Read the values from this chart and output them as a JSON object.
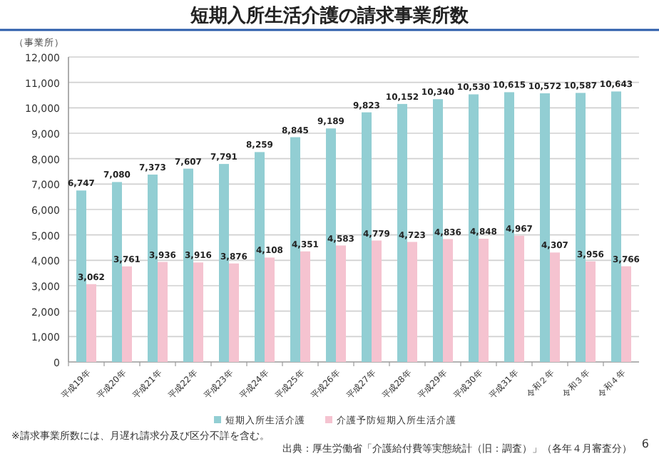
{
  "chart_data": {
    "type": "bar",
    "title": "短期入所生活介護の請求事業所数",
    "ylabel": "（事業所）",
    "categories": [
      "平成19年",
      "平成20年",
      "平成21年",
      "平成22年",
      "平成23年",
      "平成24年",
      "平成25年",
      "平成26年",
      "平成27年",
      "平成28年",
      "平成29年",
      "平成30年",
      "平成31年",
      "令和２年",
      "令和３年",
      "令和４年"
    ],
    "series": [
      {
        "name": "短期入所生活介護",
        "color": "#92ced3",
        "values": [
          6747,
          7080,
          7373,
          7607,
          7791,
          8259,
          8845,
          9189,
          9823,
          10152,
          10340,
          10530,
          10615,
          10572,
          10587,
          10643
        ],
        "value_labels": [
          "6,747",
          "7,080",
          "7,373",
          "7,607",
          "7,791",
          "8,259",
          "8,845",
          "9,189",
          "9,823",
          "10,152",
          "10,340",
          "10,530",
          "10,615",
          "10,572",
          "10,587",
          "10,643"
        ]
      },
      {
        "name": "介護予防短期入所生活介護",
        "color": "#f5c3d0",
        "values": [
          3062,
          3761,
          3936,
          3916,
          3876,
          4108,
          4351,
          4583,
          4779,
          4723,
          4836,
          4848,
          4967,
          4307,
          3956,
          3766
        ],
        "value_labels": [
          "3,062",
          "3,761",
          "3,936",
          "3,916",
          "3,876",
          "4,108",
          "4,351",
          "4,583",
          "4,779",
          "4,723",
          "4,836",
          "4,848",
          "4,967",
          "4,307",
          "3,956",
          "3,766"
        ]
      }
    ],
    "ylim": [
      0,
      12000
    ],
    "yticks": [
      0,
      {
        "value": 1000,
        "label": "1,000"
      },
      {
        "value": 2000,
        "label": "2,000"
      },
      {
        "value": 3000,
        "label": "3,000"
      },
      {
        "value": 4000,
        "label": "4,000"
      },
      {
        "value": 5000,
        "label": "5,000"
      },
      {
        "value": 6000,
        "label": "6,000"
      },
      {
        "value": 7000,
        "label": "7,000"
      },
      {
        "value": 8000,
        "label": "8,000"
      },
      {
        "value": 9000,
        "label": "9,000"
      },
      {
        "value": 10000,
        "label": "10,000"
      },
      {
        "value": 11000,
        "label": "11,000"
      },
      {
        "value": 12000,
        "label": "12,000"
      }
    ],
    "grid": "y",
    "legend": "bottom",
    "annotations": [
      "※請求事業所数には、月遅れ請求分及び区分不詳を含む。",
      "出典：厚生労働省「介護給付費等実態統計（旧：調査）」（各年４月審査分）",
      "6"
    ]
  }
}
